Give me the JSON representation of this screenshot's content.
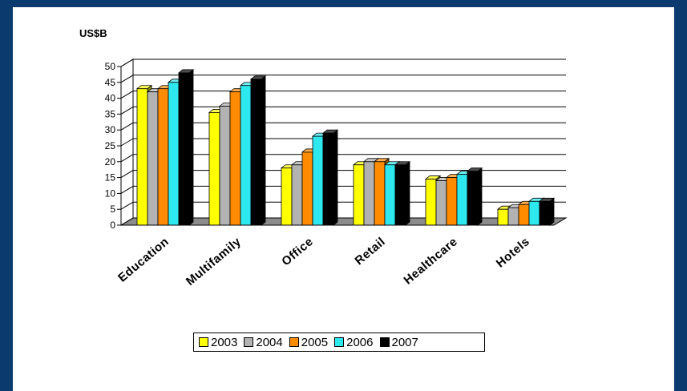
{
  "chart_data": {
    "type": "bar",
    "unit_label": "US$B",
    "categories": [
      "Education",
      "Multifamily",
      "Office",
      "Retail",
      "Healthcare",
      "Hotels"
    ],
    "series": [
      {
        "name": "2003",
        "color": "#ffff00",
        "values": [
          43,
          35.5,
          18,
          19,
          14.5,
          5
        ]
      },
      {
        "name": "2004",
        "color": "#b2b2b2",
        "values": [
          42,
          37.5,
          19,
          20,
          14,
          5.5
        ]
      },
      {
        "name": "2005",
        "color": "#ff8c00",
        "values": [
          43,
          42,
          23,
          20,
          15,
          6.5
        ]
      },
      {
        "name": "2006",
        "color": "#2ee8f0",
        "values": [
          45,
          44,
          28,
          19,
          16,
          7.5
        ]
      },
      {
        "name": "2007",
        "color": "#000000",
        "values": [
          48,
          46,
          29,
          19,
          17,
          7.5
        ]
      }
    ],
    "ylim": [
      0,
      50
    ],
    "yticks": [
      "0",
      "5",
      "10",
      "15",
      "20",
      "25",
      "30",
      "35",
      "40",
      "45",
      "50"
    ],
    "grid": true,
    "legend_position": "bottom"
  }
}
